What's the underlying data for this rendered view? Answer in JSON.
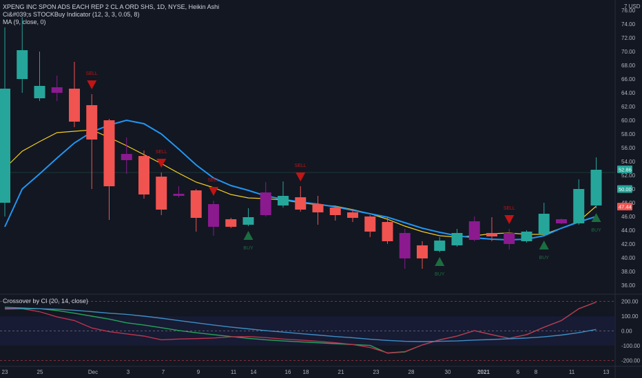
{
  "header": {
    "symbol_line": "XPENG INC SPON ADS EACH REP 2 CL A ORD SHS, 1D, NYSE, Heikin Ashi",
    "indicator_1": "Ci&#039;s STOCKBuy Indicator (12, 3, 3, 0.05, 8)",
    "indicator_2": "MA (9, close, 0)",
    "currency": "USD"
  },
  "oscillator": {
    "title": "Crossover by CI (20, 14, close)"
  },
  "colors": {
    "background": "#131722",
    "bull": "#26a69a",
    "bear": "#f05350",
    "purple": "#8b1a8f",
    "ma": "#f5d020",
    "signal_line": "#2196f3",
    "sell": "#c21414",
    "buy": "#1b6e40",
    "osc_green": "#26a65b",
    "osc_red": "#c0334f",
    "osc_blue": "#3d8fc4"
  },
  "price_labels": [
    "52.86",
    "50.00",
    "47.44"
  ],
  "chart_data": [
    {
      "type": "candlestick",
      "title": "XPENG INC SPON ADS EACH REP 2 CL A ORD SHS, 1D, NYSE, Heikin Ashi",
      "y_axis_ticks": [
        36,
        38,
        40,
        42,
        44,
        46,
        48,
        50,
        52,
        54,
        56,
        58,
        60,
        62,
        64,
        66,
        68,
        70,
        72,
        74,
        76
      ],
      "ylim": [
        35,
        77
      ],
      "x_tick_labels": [
        "23",
        "25",
        "Dec",
        "3",
        "7",
        "9",
        "11",
        "14",
        "16",
        "18",
        "21",
        "23",
        "28",
        "30",
        "2021",
        "6",
        "8",
        "11",
        "13"
      ],
      "candles": [
        {
          "o": 48,
          "c": 64.6,
          "h": 73.5,
          "l": 46,
          "color": "bull"
        },
        {
          "o": 66,
          "c": 70.2,
          "h": 75,
          "l": 64,
          "color": "bull"
        },
        {
          "o": 63.2,
          "c": 65,
          "h": 70,
          "l": 62.8,
          "color": "bull"
        },
        {
          "o": 64.8,
          "c": 64,
          "h": 66.5,
          "l": 62.8,
          "color": "purple"
        },
        {
          "o": 64.6,
          "c": 59.8,
          "h": 68.5,
          "l": 59,
          "color": "bear"
        },
        {
          "o": 62.2,
          "c": 57.2,
          "h": 63.8,
          "l": 50,
          "color": "bear"
        },
        {
          "o": 60,
          "c": 50.4,
          "h": 60.2,
          "l": 45.5,
          "color": "bear"
        },
        {
          "o": 55.1,
          "c": 54.2,
          "h": 57.5,
          "l": 52.2,
          "color": "purple"
        },
        {
          "o": 54.8,
          "c": 49.2,
          "h": 55.6,
          "l": 48.6,
          "color": "bear"
        },
        {
          "o": 51.8,
          "c": 47,
          "h": 52.4,
          "l": 46.2,
          "color": "bear"
        },
        {
          "o": 49.3,
          "c": 49,
          "h": 50.4,
          "l": 48.8,
          "color": "purple"
        },
        {
          "o": 49.8,
          "c": 45.8,
          "h": 50,
          "l": 43.8,
          "color": "bear"
        },
        {
          "o": 47.8,
          "c": 44.5,
          "h": 48.3,
          "l": 43.2,
          "color": "purple"
        },
        {
          "o": 45.6,
          "c": 44.5,
          "h": 45.8,
          "l": 44.3,
          "color": "bear"
        },
        {
          "o": 44.8,
          "c": 45.9,
          "h": 47.2,
          "l": 44.6,
          "color": "bull"
        },
        {
          "o": 46.2,
          "c": 49.5,
          "h": 51,
          "l": 46,
          "color": "purple"
        },
        {
          "o": 47.6,
          "c": 49,
          "h": 51.1,
          "l": 47.3,
          "color": "bull"
        },
        {
          "o": 48.8,
          "c": 47,
          "h": 50.4,
          "l": 46.7,
          "color": "bear"
        },
        {
          "o": 47.8,
          "c": 46.6,
          "h": 49,
          "l": 44.8,
          "color": "bear"
        },
        {
          "o": 47.3,
          "c": 46.2,
          "h": 47.5,
          "l": 45.4,
          "color": "bear"
        },
        {
          "o": 46.6,
          "c": 45.8,
          "h": 47,
          "l": 45.2,
          "color": "bear"
        },
        {
          "o": 46,
          "c": 43.8,
          "h": 46.2,
          "l": 43,
          "color": "bear"
        },
        {
          "o": 45.2,
          "c": 42.4,
          "h": 45.8,
          "l": 42,
          "color": "bear"
        },
        {
          "o": 43.6,
          "c": 39.9,
          "h": 44.2,
          "l": 38.4,
          "color": "purple"
        },
        {
          "o": 41.8,
          "c": 39.9,
          "h": 42.4,
          "l": 38.4,
          "color": "bear"
        },
        {
          "o": 41,
          "c": 42.5,
          "h": 43,
          "l": 40.8,
          "color": "bull"
        },
        {
          "o": 41.8,
          "c": 43.6,
          "h": 44.2,
          "l": 41.6,
          "color": "bull"
        },
        {
          "o": 42.6,
          "c": 45.3,
          "h": 46,
          "l": 42.4,
          "color": "purple"
        },
        {
          "o": 43.6,
          "c": 43.1,
          "h": 45.9,
          "l": 42.4,
          "color": "bear"
        },
        {
          "o": 43.6,
          "c": 42,
          "h": 44.2,
          "l": 41.2,
          "color": "purple"
        },
        {
          "o": 42.4,
          "c": 43.8,
          "h": 44,
          "l": 42.2,
          "color": "bull"
        },
        {
          "o": 43.4,
          "c": 46.4,
          "h": 48,
          "l": 43.2,
          "color": "bull"
        },
        {
          "o": 45.6,
          "c": 45,
          "h": 45.7,
          "l": 44.9,
          "color": "purple"
        },
        {
          "o": 45,
          "c": 50,
          "h": 51.4,
          "l": 44.8,
          "color": "bull"
        },
        {
          "o": 47.6,
          "c": 52.8,
          "h": 54.6,
          "l": 47.2,
          "color": "bull"
        }
      ],
      "ma_9": [
        53,
        55.5,
        56.9,
        58.2,
        58.4,
        58.6,
        57.5,
        56.3,
        55,
        53.7,
        52.3,
        51,
        50.2,
        49.2,
        48.7,
        48.6,
        48.4,
        48,
        47.7,
        47.5,
        47,
        46.4,
        45.6,
        44.6,
        43.8,
        43.2,
        43,
        43.2,
        43.5,
        43.6,
        43.4,
        43.4,
        44.3,
        45.3,
        47.5
      ],
      "signal_line": [
        44.5,
        50,
        52.2,
        54.5,
        56.7,
        58.3,
        59.3,
        60,
        59.5,
        58,
        55.8,
        53.5,
        51.6,
        50.5,
        49.8,
        49,
        48.5,
        48.1,
        47.8,
        47.4,
        46.9,
        46.4,
        45.9,
        45.1,
        44.3,
        43.7,
        43.2,
        42.9,
        42.7,
        42.6,
        42.7,
        43.2,
        44.3,
        45.2,
        46
      ],
      "markers": [
        {
          "index": 5,
          "type": "sell",
          "label": "SELL"
        },
        {
          "index": 9,
          "type": "sell",
          "label": "SELL"
        },
        {
          "index": 12,
          "type": "sell",
          "label": "SELL"
        },
        {
          "index": 14,
          "type": "buy",
          "label": "BUY"
        },
        {
          "index": 17,
          "type": "sell",
          "label": "SELL"
        },
        {
          "index": 25,
          "type": "buy",
          "label": "BUY"
        },
        {
          "index": 29,
          "type": "sell",
          "label": "SELL"
        },
        {
          "index": 31,
          "type": "buy",
          "label": "BUY"
        },
        {
          "index": 34,
          "type": "buy",
          "label": "BUY"
        }
      ]
    },
    {
      "type": "line",
      "title": "Crossover by CI (20, 14, close)",
      "y_axis_ticks": [
        -200,
        -100,
        0,
        100,
        200
      ],
      "ylim": [
        -230,
        230
      ],
      "series": [
        {
          "color": "osc_green",
          "values": [
            160,
            155,
            150,
            138,
            120,
            100,
            80,
            55,
            40,
            22,
            3,
            -12,
            -25,
            -38,
            -50,
            -60,
            -68,
            -74,
            -80,
            -86,
            -92,
            -98,
            -150,
            -142,
            -95,
            -60,
            -35,
            2,
            -25,
            -50,
            -25,
            25,
            70,
            150,
            195
          ]
        },
        {
          "color": "osc_red",
          "values": [
            155,
            150,
            130,
            95,
            70,
            20,
            -5,
            -20,
            -35,
            -60,
            -55,
            -52,
            -48,
            -40,
            -38,
            -45,
            -55,
            -62,
            -70,
            -80,
            -92,
            -112,
            -148,
            -140,
            -95,
            -60,
            -35,
            2,
            -25,
            -50,
            -25,
            25,
            70,
            150,
            195
          ]
        },
        {
          "color": "osc_blue",
          "values": [
            148,
            150,
            150,
            147,
            140,
            130,
            120,
            112,
            100,
            86,
            70,
            55,
            40,
            26,
            14,
            2,
            -8,
            -18,
            -28,
            -38,
            -46,
            -56,
            -64,
            -70,
            -72,
            -70,
            -68,
            -62,
            -58,
            -53,
            -48,
            -40,
            -28,
            -12,
            10
          ]
        }
      ]
    }
  ]
}
